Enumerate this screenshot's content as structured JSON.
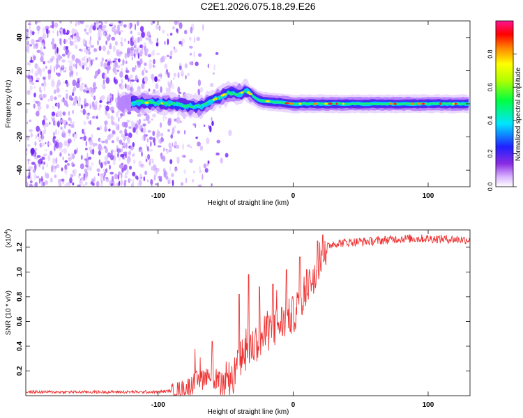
{
  "figure": {
    "title": "C2E1.2026.075.18.29.E26"
  },
  "chart_data": [
    {
      "type": "heatmap",
      "xlabel": "Height of straight line (km)",
      "ylabel": "Frequency (Hz)",
      "xlim": [
        -198,
        131
      ],
      "ylim": [
        -50,
        50
      ],
      "xticks": [
        -100,
        0,
        100
      ],
      "yticks": [
        -40,
        -20,
        0,
        20,
        40
      ],
      "colorbar": {
        "label": "Normalized spectral amplitude",
        "range": [
          0,
          1
        ],
        "ticks": [
          "0.0",
          "0.2",
          "0.4",
          "0.6",
          "0.8"
        ],
        "tick_values": [
          0.0,
          0.2,
          0.4,
          0.6,
          0.8
        ],
        "colormap": "rainbow (white-violet-blue-cyan-green-yellow-red-magenta)"
      },
      "ridge": {
        "description": "spectral ridge near 0 Hz, noisy scatter below about -80 km",
        "noise_region_x": [
          -198,
          -80
        ],
        "ridge_start_x": -120,
        "ridge_end_x": 131,
        "ridge_freq_hz": [
          [
            -120,
            1
          ],
          [
            -90,
            0
          ],
          [
            -70,
            -2
          ],
          [
            -60,
            2
          ],
          [
            -50,
            6
          ],
          [
            -45,
            7
          ],
          [
            -40,
            6
          ],
          [
            -35,
            8
          ],
          [
            -25,
            2
          ],
          [
            0,
            0
          ],
          [
            40,
            0
          ],
          [
            80,
            0
          ],
          [
            131,
            0
          ]
        ]
      }
    },
    {
      "type": "line",
      "xlabel": "Height of straight line (km)",
      "ylabel": "SNR (10 * v/v)",
      "multiplier": "(x10",
      "multiplier_exp": "4",
      "multiplier_close": ")",
      "xlim": [
        -198,
        131
      ],
      "ylim": [
        0,
        1.34
      ],
      "xticks": [
        -100,
        0,
        100
      ],
      "yticks": [
        0.2,
        0.4,
        0.6,
        0.8,
        1.0,
        1.2
      ],
      "ytick_labels": [
        "0.2",
        "0.4",
        "0.6",
        "0.8",
        "1.0",
        "1.2"
      ],
      "color": "#ee3333",
      "envelope": [
        [
          -198,
          0.03
        ],
        [
          -130,
          0.03
        ],
        [
          -100,
          0.03
        ],
        [
          -90,
          0.04
        ],
        [
          -80,
          0.06
        ],
        [
          -70,
          0.12
        ],
        [
          -60,
          0.2
        ],
        [
          -55,
          0.08
        ],
        [
          -50,
          0.06
        ],
        [
          -45,
          0.12
        ],
        [
          -40,
          0.28
        ],
        [
          -35,
          0.35
        ],
        [
          -30,
          0.4
        ],
        [
          -20,
          0.5
        ],
        [
          -10,
          0.58
        ],
        [
          0,
          0.65
        ],
        [
          10,
          0.85
        ],
        [
          15,
          0.98
        ],
        [
          20,
          1.12
        ],
        [
          25,
          1.2
        ],
        [
          30,
          1.23
        ],
        [
          40,
          1.24
        ],
        [
          60,
          1.25
        ],
        [
          80,
          1.27
        ],
        [
          100,
          1.27
        ],
        [
          131,
          1.26
        ]
      ],
      "spikes": [
        [
          -60,
          0.44
        ],
        [
          -40,
          0.82
        ],
        [
          -33,
          0.98
        ],
        [
          -25,
          0.88
        ],
        [
          -15,
          0.9
        ],
        [
          -5,
          1.02
        ],
        [
          5,
          1.12
        ],
        [
          10,
          1.02
        ],
        [
          18,
          1.25
        ],
        [
          22,
          1.3
        ]
      ]
    }
  ]
}
